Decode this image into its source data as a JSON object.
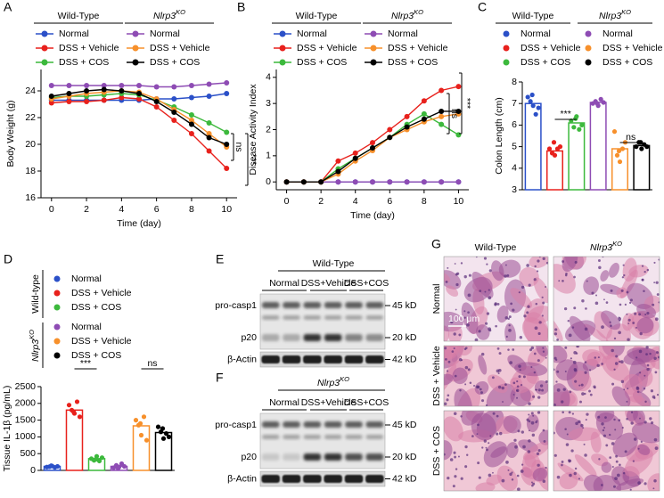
{
  "chart_data": [
    {
      "panel": "A",
      "type": "line",
      "legend_groups": [
        {
          "text": "Wild-Type"
        },
        {
          "text": "Nlrp3",
          "sup": "KO"
        }
      ],
      "x": [
        0,
        1,
        2,
        3,
        4,
        5,
        6,
        7,
        8,
        9,
        10
      ],
      "xlim": [
        -0.6,
        10.6
      ],
      "xticks": [
        0,
        2,
        4,
        6,
        8,
        10
      ],
      "ylim": [
        16,
        25.6
      ],
      "yticks": [
        16,
        18,
        20,
        22,
        24
      ],
      "xlabel": "Time (day)",
      "ylabel": "Body Weight (g)",
      "series": [
        {
          "name": "Normal",
          "color": "#2b50c8",
          "values": [
            23.3,
            23.3,
            23.3,
            23.3,
            23.3,
            23.3,
            23.4,
            23.4,
            23.5,
            23.6,
            23.8
          ]
        },
        {
          "name": "DSS + Vehicle",
          "color": "#e8211c",
          "values": [
            23.1,
            23.2,
            23.2,
            23.3,
            23.5,
            23.4,
            22.8,
            21.8,
            20.8,
            19.5,
            18.2
          ]
        },
        {
          "name": "DSS + COS",
          "color": "#3cb93c",
          "values": [
            23.5,
            23.6,
            23.6,
            23.7,
            23.8,
            23.7,
            23.3,
            22.8,
            22.2,
            21.6,
            20.9
          ]
        },
        {
          "name": "Normal",
          "color": "#8e4cb4",
          "values": [
            24.4,
            24.4,
            24.4,
            24.4,
            24.4,
            24.4,
            24.3,
            24.3,
            24.4,
            24.5,
            24.6
          ]
        },
        {
          "name": "DSS + Vehicle",
          "color": "#f7902b",
          "values": [
            23.4,
            23.6,
            23.8,
            23.9,
            24.0,
            23.9,
            23.4,
            22.6,
            21.8,
            20.8,
            19.8
          ]
        },
        {
          "name": "DSS + COS",
          "color": "#000000",
          "values": [
            23.6,
            23.8,
            24.0,
            24.1,
            24.0,
            23.8,
            23.2,
            22.4,
            21.5,
            20.5,
            20.0
          ]
        }
      ],
      "annotations": [
        "ns",
        "***"
      ]
    },
    {
      "panel": "B",
      "type": "line",
      "legend_groups": [
        {
          "text": "Wild-Type"
        },
        {
          "text": "Nlrp3",
          "sup": "KO"
        }
      ],
      "x": [
        0,
        1,
        2,
        3,
        4,
        5,
        6,
        7,
        8,
        9,
        10
      ],
      "xlim": [
        -0.6,
        10.6
      ],
      "xticks": [
        0,
        2,
        4,
        6,
        8,
        10
      ],
      "ylim": [
        -0.3,
        4.3
      ],
      "yticks": [
        0,
        1,
        2,
        3,
        4
      ],
      "xlabel": "Time (day)",
      "ylabel": "Disease Activity Index",
      "series": [
        {
          "name": "Normal",
          "color": "#2b50c8",
          "values": [
            0,
            0,
            0,
            0,
            0,
            0,
            0,
            0,
            0,
            0,
            0
          ]
        },
        {
          "name": "DSS + Vehicle",
          "color": "#e8211c",
          "values": [
            0,
            0,
            0,
            0.8,
            1.1,
            1.5,
            2.0,
            2.5,
            3.1,
            3.5,
            3.65
          ]
        },
        {
          "name": "DSS + COS",
          "color": "#3cb93c",
          "values": [
            0,
            0,
            0,
            0.5,
            0.9,
            1.3,
            1.7,
            2.2,
            2.6,
            2.2,
            1.8
          ]
        },
        {
          "name": "Normal",
          "color": "#8e4cb4",
          "values": [
            0,
            0,
            0,
            0,
            0,
            0,
            0,
            0,
            0,
            0,
            0
          ]
        },
        {
          "name": "DSS + Vehicle",
          "color": "#f7902b",
          "values": [
            0,
            0,
            0,
            0.3,
            0.8,
            1.2,
            1.7,
            2.0,
            2.3,
            2.5,
            2.6
          ]
        },
        {
          "name": "DSS + COS",
          "color": "#000000",
          "values": [
            0,
            0,
            0,
            0.4,
            0.9,
            1.3,
            1.7,
            2.1,
            2.4,
            2.7,
            2.7
          ]
        }
      ],
      "annotations": [
        "ns",
        "***"
      ]
    },
    {
      "panel": "C",
      "type": "bar",
      "legend_groups": [
        {
          "text": "Wild-Type"
        },
        {
          "text": "Nlrp3",
          "sup": "KO"
        }
      ],
      "ylim": [
        3,
        8
      ],
      "yticks": [
        3,
        4,
        5,
        6,
        7,
        8
      ],
      "ylabel": "Colon Length (cm)",
      "groups": [
        {
          "name": "Normal",
          "color": "#2b50c8",
          "value": 7.0,
          "points": [
            7.3,
            7.1,
            6.9,
            6.5,
            6.8,
            7.4
          ]
        },
        {
          "name": "DSS + Vehicle",
          "color": "#e8211c",
          "value": 4.8,
          "points": [
            4.9,
            4.7,
            4.6,
            4.9,
            5.0,
            5.2
          ]
        },
        {
          "name": "DSS + COS",
          "color": "#3cb93c",
          "value": 6.1,
          "points": [
            6.2,
            5.9,
            6.4,
            5.8,
            6.0,
            6.3
          ]
        },
        {
          "name": "Normal",
          "color": "#8e4cb4",
          "value": 7.05,
          "points": [
            7.0,
            7.1,
            6.9,
            7.2,
            7.05,
            7.0
          ]
        },
        {
          "name": "DSS + Vehicle",
          "color": "#f7902b",
          "value": 4.9,
          "points": [
            5.7,
            4.6,
            4.3,
            4.9,
            5.2,
            4.8
          ]
        },
        {
          "name": "DSS + COS",
          "color": "#000000",
          "value": 5.05,
          "points": [
            5.0,
            5.2,
            4.9,
            5.1,
            5.0,
            5.2
          ]
        }
      ],
      "annotations": [
        "***",
        "ns"
      ]
    },
    {
      "panel": "D",
      "type": "bar",
      "legend_groups": [
        {
          "text": "Wild-type"
        },
        {
          "text": "Nlrp3",
          "sup": "KO"
        }
      ],
      "ylim": [
        0,
        2500
      ],
      "yticks": [
        0,
        500,
        1000,
        1500,
        2000,
        2500
      ],
      "ylabel": "Tissue IL-1β (pg/mL)",
      "groups": [
        {
          "name": "Normal",
          "color": "#2b50c8",
          "value": 120,
          "points": [
            100,
            110,
            130,
            90,
            120,
            140
          ]
        },
        {
          "name": "DSS + Vehicle",
          "color": "#e8211c",
          "value": 1800,
          "points": [
            1950,
            1800,
            1700,
            2050,
            1600,
            1750
          ]
        },
        {
          "name": "DSS + COS",
          "color": "#3cb93c",
          "value": 350,
          "points": [
            350,
            300,
            420,
            280,
            380,
            330
          ]
        },
        {
          "name": "Normal",
          "color": "#8e4cb4",
          "value": 120,
          "points": [
            80,
            150,
            100,
            200,
            120,
            60
          ]
        },
        {
          "name": "DSS + Vehicle",
          "color": "#f7902b",
          "value": 1330,
          "points": [
            1500,
            1350,
            1050,
            1600,
            900,
            1400
          ]
        },
        {
          "name": "DSS + COS",
          "color": "#000000",
          "value": 1130,
          "points": [
            1300,
            1150,
            950,
            1100,
            1000,
            1250
          ]
        }
      ],
      "annotations": [
        "***",
        "ns"
      ]
    }
  ],
  "blots": [
    {
      "panel": "E",
      "title": {
        "text": "Wild-Type"
      },
      "lanes": [
        "Normal",
        "DSS+Vehicle",
        "DSS+COS"
      ],
      "rows": [
        "pro-casp1",
        "p20",
        "β-Actin"
      ],
      "markers": [
        "45 kD",
        "20 kD",
        "42 kD"
      ]
    },
    {
      "panel": "F",
      "title": {
        "text": "Nlrp3",
        "sup": "KO"
      },
      "lanes": [
        "Normal",
        "DSS+Vehicle",
        "DSS+COS"
      ],
      "rows": [
        "pro-casp1",
        "p20",
        "β-Actin"
      ],
      "markers": [
        "45 kD",
        "20 kD",
        "42 kD"
      ]
    }
  ],
  "histology": {
    "panel": "G",
    "columns": [
      {
        "text": "Wild-Type"
      },
      {
        "text": "Nlrp3",
        "sup": "KO"
      }
    ],
    "rows": [
      "Normal",
      "DSS + Vehicle",
      "DSS + COS"
    ],
    "scale_bar": "100 μm"
  }
}
